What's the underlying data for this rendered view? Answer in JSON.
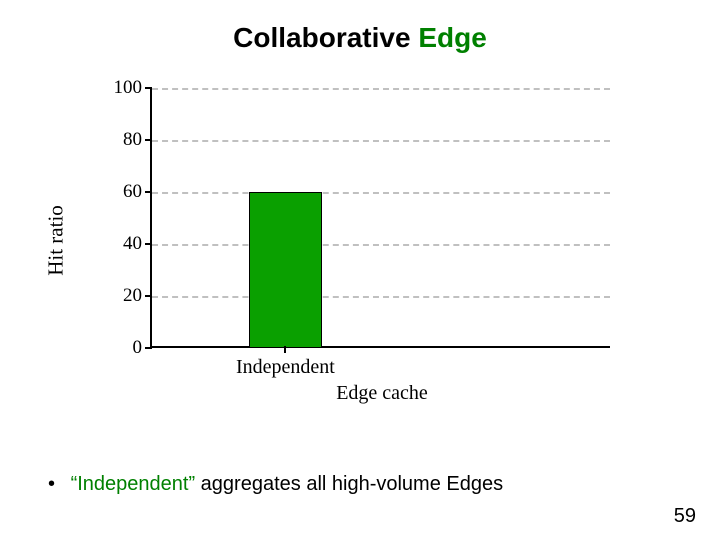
{
  "title": {
    "part1": "Collaborative ",
    "part2": "Edge",
    "fontsize": 28,
    "color_part1": "#000000",
    "color_part2": "#008000"
  },
  "chart": {
    "type": "bar",
    "ylabel": "Hit ratio",
    "ylabel_fontsize": 21,
    "ylim": [
      0,
      100
    ],
    "yticks": [
      0,
      20,
      40,
      60,
      80,
      100
    ],
    "ytick_fontsize": 19,
    "grid_color": "#c0c0c0",
    "grid_style": "dashed",
    "axis_color": "#000000",
    "background_color": "#ffffff",
    "categories": [
      "Independent"
    ],
    "values": [
      60
    ],
    "bar_colors": [
      "#0aa000"
    ],
    "bar_width": 0.16,
    "bar_center": 0.29,
    "x_axis_label": "Edge cache",
    "x_axis_label_center": 0.5,
    "x_label_fontsize": 20
  },
  "bullet": {
    "quoted": "“Independent”",
    "rest": " aggregates all high-volume Edges",
    "quoted_color": "#008000",
    "fontsize": 20
  },
  "page_number": "59"
}
